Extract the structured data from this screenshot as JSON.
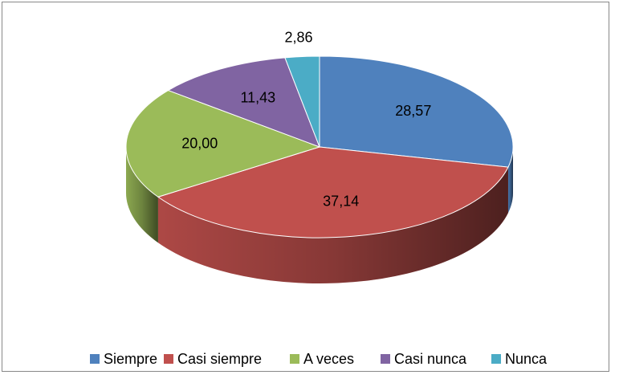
{
  "chart_data": {
    "type": "pie3d",
    "categories": [
      "Siempre",
      "Casi siempre",
      "A veces",
      "Casi nunca",
      "Nunca"
    ],
    "values": [
      28.57,
      37.14,
      20.0,
      11.43,
      2.86
    ],
    "value_labels": [
      "28,57",
      "37,14",
      "20,00",
      "11,43",
      "2,86"
    ],
    "colors": [
      "#4F81BD",
      "#C0504D",
      "#9BBB59",
      "#8064A2",
      "#4BACC6"
    ],
    "legend": "bottom"
  }
}
